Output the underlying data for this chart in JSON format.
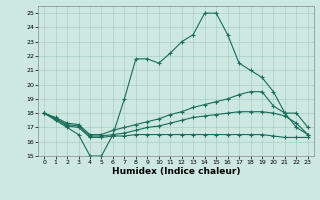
{
  "xlabel": "Humidex (Indice chaleur)",
  "xlim": [
    -0.5,
    23.5
  ],
  "ylim": [
    15,
    25.5
  ],
  "yticks": [
    15,
    16,
    17,
    18,
    19,
    20,
    21,
    22,
    23,
    24,
    25
  ],
  "xticks": [
    0,
    1,
    2,
    3,
    4,
    5,
    6,
    7,
    8,
    9,
    10,
    11,
    12,
    13,
    14,
    15,
    16,
    17,
    18,
    19,
    20,
    21,
    22,
    23
  ],
  "bg_color": "#cce8e0",
  "line_color": "#1a6b5a",
  "series": [
    {
      "x": [
        0,
        1,
        2,
        3,
        4,
        5,
        6,
        7,
        8,
        9,
        10,
        11,
        12,
        13,
        14,
        15,
        16,
        17,
        18,
        19,
        20,
        21,
        22,
        23
      ],
      "y": [
        18,
        17.5,
        17,
        16.5,
        15,
        15,
        16.5,
        19,
        21.8,
        21.8,
        21.5,
        22.2,
        23,
        23.5,
        25,
        25,
        23.5,
        21.5,
        21,
        20.5,
        19.5,
        18,
        18,
        17
      ]
    },
    {
      "x": [
        0,
        1,
        2,
        3,
        4,
        5,
        6,
        7,
        8,
        9,
        10,
        11,
        12,
        13,
        14,
        15,
        16,
        17,
        18,
        19,
        20,
        21,
        22,
        23
      ],
      "y": [
        18,
        17.7,
        17.3,
        17.2,
        16.5,
        16.5,
        16.8,
        17.0,
        17.2,
        17.4,
        17.6,
        17.9,
        18.1,
        18.4,
        18.6,
        18.8,
        19.0,
        19.3,
        19.5,
        19.5,
        18.5,
        18,
        17,
        16.5
      ]
    },
    {
      "x": [
        0,
        1,
        2,
        3,
        4,
        5,
        6,
        7,
        8,
        9,
        10,
        11,
        12,
        13,
        14,
        15,
        16,
        17,
        18,
        19,
        20,
        21,
        22,
        23
      ],
      "y": [
        18,
        17.6,
        17.2,
        17.1,
        16.4,
        16.4,
        16.5,
        16.6,
        16.8,
        17.0,
        17.1,
        17.3,
        17.5,
        17.7,
        17.8,
        17.9,
        18.0,
        18.1,
        18.1,
        18.1,
        18.0,
        17.8,
        17.3,
        16.5
      ]
    },
    {
      "x": [
        0,
        1,
        2,
        3,
        4,
        5,
        6,
        7,
        8,
        9,
        10,
        11,
        12,
        13,
        14,
        15,
        16,
        17,
        18,
        19,
        20,
        21,
        22,
        23
      ],
      "y": [
        18,
        17.6,
        17.1,
        17.0,
        16.3,
        16.3,
        16.4,
        16.4,
        16.5,
        16.5,
        16.5,
        16.5,
        16.5,
        16.5,
        16.5,
        16.5,
        16.5,
        16.5,
        16.5,
        16.5,
        16.4,
        16.3,
        16.3,
        16.3
      ]
    }
  ]
}
